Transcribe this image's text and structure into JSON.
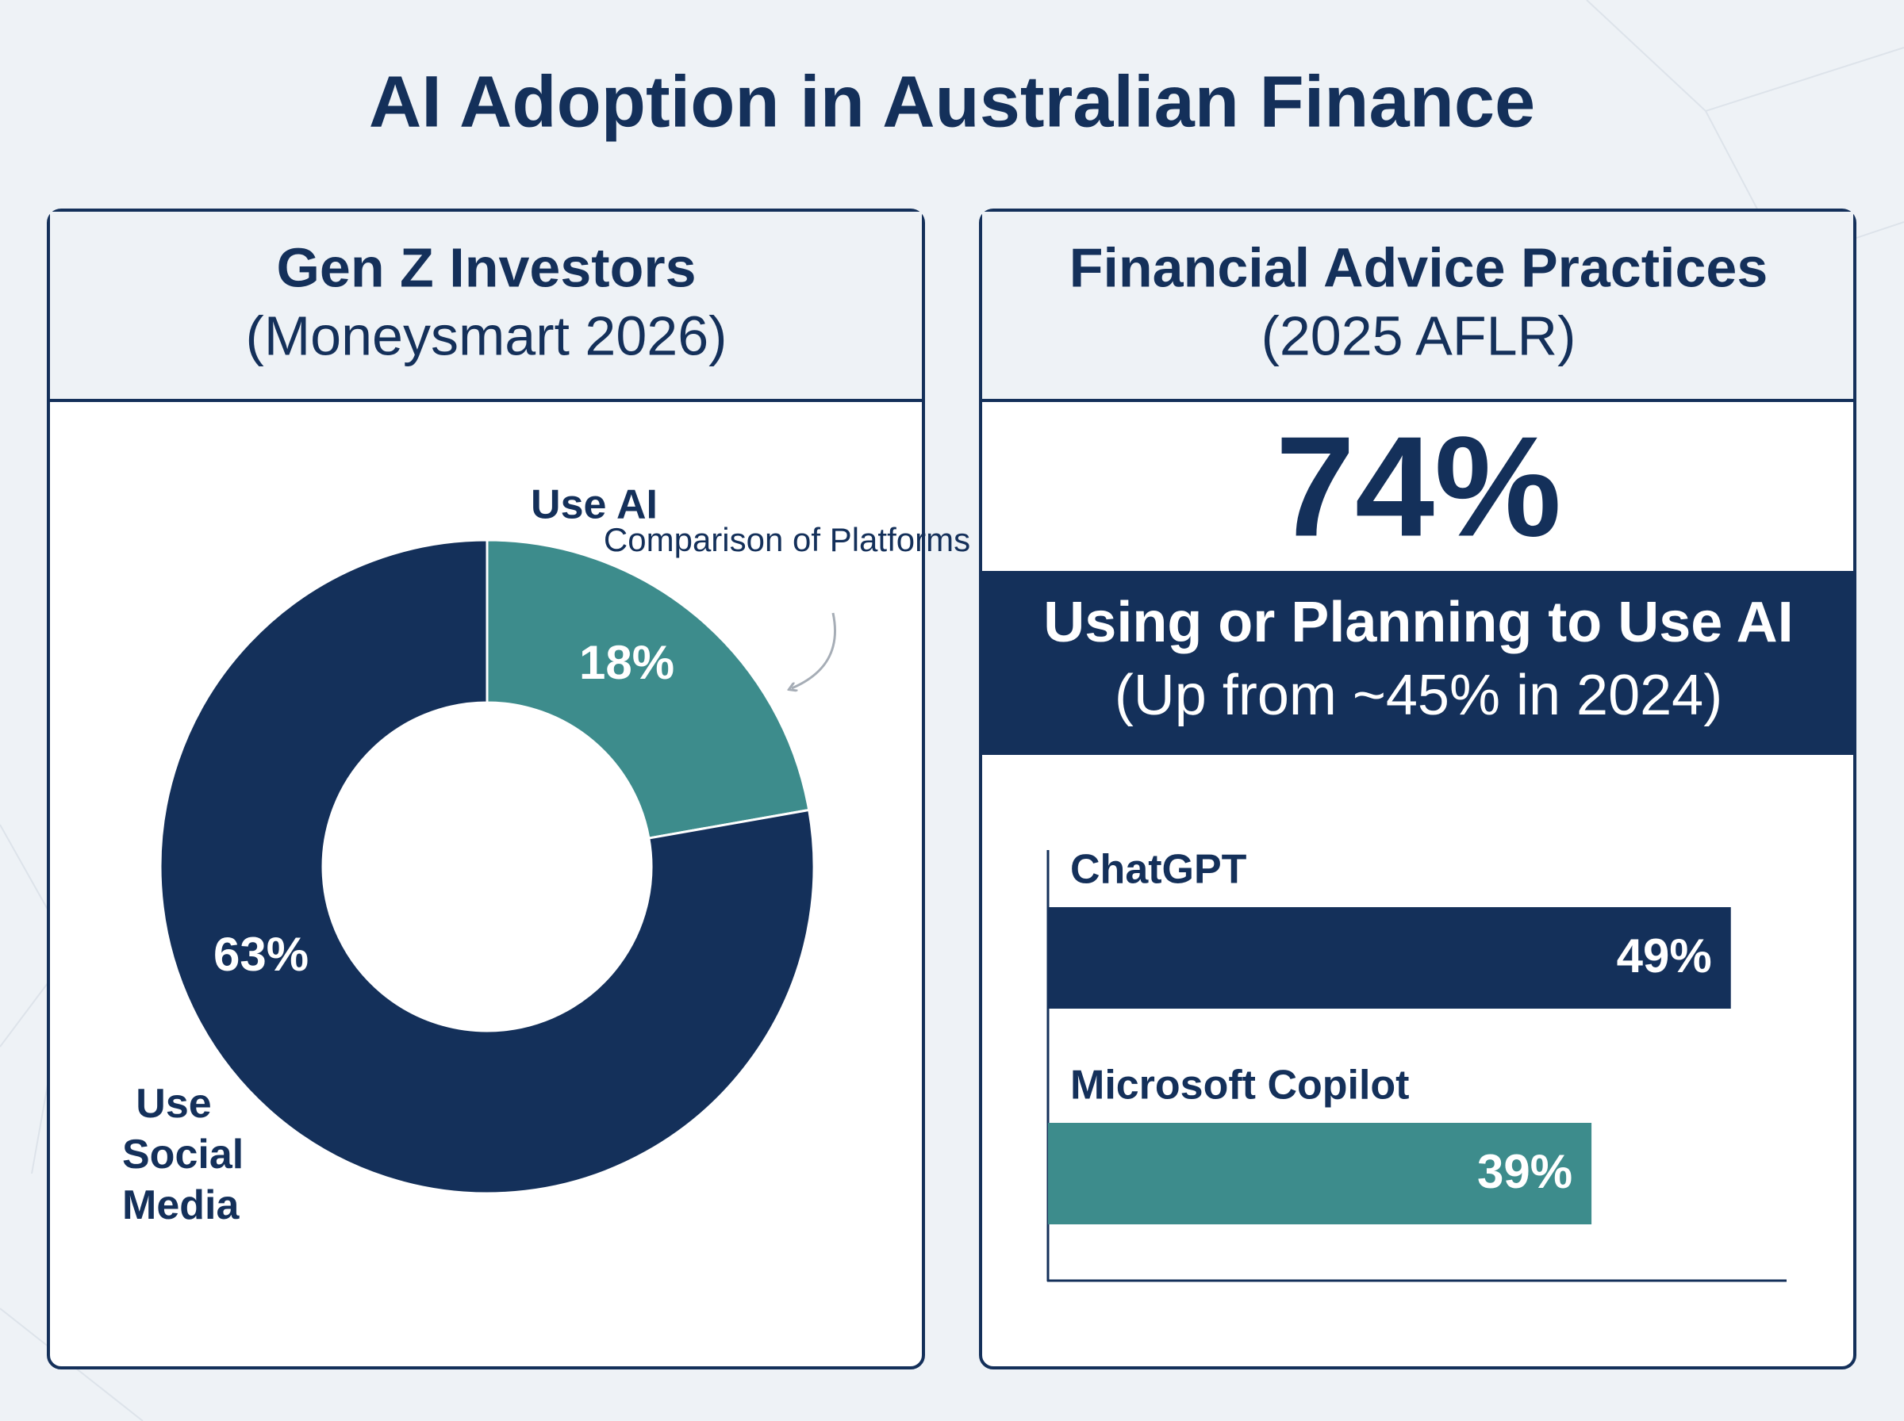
{
  "title": "AI Adoption in Australian Finance",
  "chart_data": [
    {
      "type": "donut",
      "title": "Gen Z Investors",
      "subtitle": "(Moneysmart 2026)",
      "categories": [
        "Use AI",
        "Use Social Media"
      ],
      "values": [
        18,
        63
      ],
      "value_labels": [
        "18%",
        "63%"
      ],
      "colors": [
        "#3d8c8c",
        "#14305a"
      ],
      "annotation": "Comparison of Platforms"
    },
    {
      "type": "bar",
      "orientation": "horizontal",
      "title": "Financial Advice Practices",
      "subtitle": "(2025 AFLR)",
      "highlight": "74%",
      "highlight_caption": "Using or Planning to Use AI",
      "highlight_note": "(Up from ~45% in 2024)",
      "categories": [
        "ChatGPT",
        "Microsoft Copilot"
      ],
      "values": [
        49,
        39
      ],
      "value_labels": [
        "49%",
        "39%"
      ],
      "colors": [
        "#14305a",
        "#3d8c8c"
      ],
      "xlim": [
        0,
        53
      ]
    }
  ]
}
